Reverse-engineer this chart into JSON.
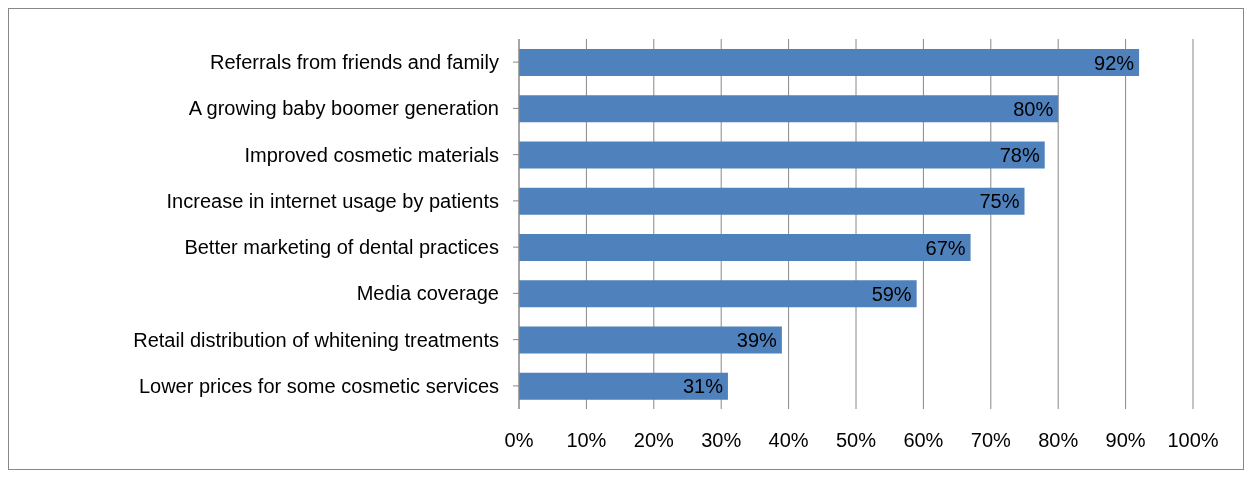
{
  "chart_data": {
    "type": "bar",
    "orientation": "horizontal",
    "categories": [
      "Referrals from friends and family",
      "A growing baby boomer generation",
      "Improved cosmetic materials",
      "Increase in internet usage by patients",
      "Better marketing of dental practices",
      "Media coverage",
      "Retail distribution of whitening treatments",
      "Lower prices for some cosmetic services"
    ],
    "values": [
      92,
      80,
      78,
      75,
      67,
      59,
      39,
      31
    ],
    "value_labels": [
      "92%",
      "80%",
      "78%",
      "75%",
      "67%",
      "59%",
      "39%",
      "31%"
    ],
    "color": "#4f81bd",
    "xlim": [
      0,
      100
    ],
    "xticks": [
      {
        "value": 0,
        "label": "0%"
      },
      {
        "value": 10,
        "label": "10%"
      },
      {
        "value": 20,
        "label": "20%"
      },
      {
        "value": 30,
        "label": "30%"
      },
      {
        "value": 40,
        "label": "40%"
      },
      {
        "value": 50,
        "label": "50%"
      },
      {
        "value": 60,
        "label": "60%"
      },
      {
        "value": 70,
        "label": "70%"
      },
      {
        "value": 80,
        "label": "80%"
      },
      {
        "value": 90,
        "label": "90%"
      },
      {
        "value": 100,
        "label": "100%"
      }
    ],
    "grid": "x"
  }
}
